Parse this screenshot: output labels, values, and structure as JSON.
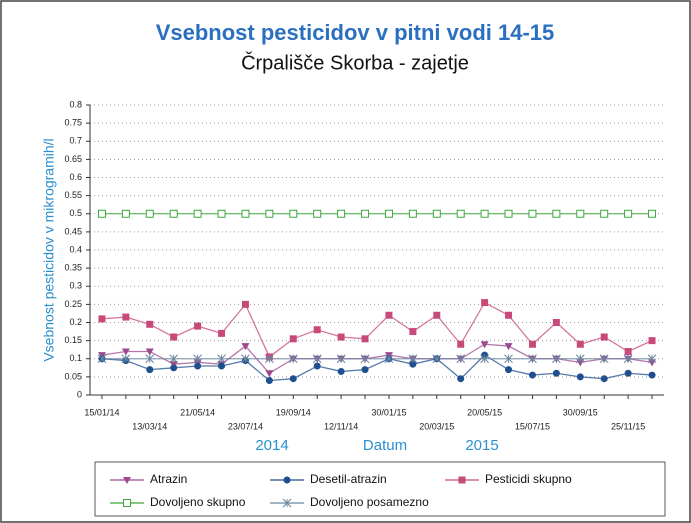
{
  "chart_data": {
    "type": "line",
    "title": "Vsebnost pesticidov v pitni vodi 14-15",
    "subtitle": "Črpališče Skorba - zajetje",
    "y_label": "Vsebnost pesticidov v mikrogramih/l",
    "x_label": "Datum",
    "annotations": [
      "2014",
      "2015"
    ],
    "categories": [
      "15/01/14",
      null,
      "13/03/14",
      null,
      "21/05/14",
      null,
      "23/07/14",
      null,
      "19/09/14",
      null,
      "12/11/14",
      null,
      "30/01/15",
      null,
      "20/03/15",
      null,
      "20/05/15",
      null,
      "15/07/15",
      null,
      "30/09/15",
      null,
      "25/11/15",
      null
    ],
    "series": [
      {
        "name": "Atrazin",
        "color": "#9b4a8e",
        "marker": "triangle",
        "values": [
          0.11,
          0.12,
          0.12,
          0.085,
          0.09,
          0.085,
          0.135,
          0.06,
          0.1,
          0.1,
          0.1,
          0.1,
          0.11,
          0.1,
          0.1,
          0.1,
          0.14,
          0.135,
          0.1,
          0.1,
          0.09,
          0.1,
          0.1,
          0.09
        ]
      },
      {
        "name": "Desetil-atrazin",
        "color": "#1f4f8f",
        "marker": "circle",
        "values": [
          0.1,
          0.095,
          0.07,
          0.075,
          0.08,
          0.08,
          0.095,
          0.04,
          0.045,
          0.08,
          0.065,
          0.07,
          0.1,
          0.085,
          0.1,
          0.045,
          0.11,
          0.07,
          0.055,
          0.06,
          0.05,
          0.045,
          0.06,
          0.055
        ]
      },
      {
        "name": "Pesticidi skupno",
        "color": "#c84a7a",
        "marker": "square",
        "values": [
          0.21,
          0.215,
          0.195,
          0.16,
          0.19,
          0.17,
          0.25,
          0.105,
          0.155,
          0.18,
          0.16,
          0.155,
          0.22,
          0.175,
          0.22,
          0.14,
          0.255,
          0.22,
          0.14,
          0.2,
          0.14,
          0.16,
          0.12,
          0.15
        ]
      },
      {
        "name": "Dovoljeno skupno",
        "color": "#3aa83a",
        "marker": "hollow",
        "values": [
          0.5,
          0.5,
          0.5,
          0.5,
          0.5,
          0.5,
          0.5,
          0.5,
          0.5,
          0.5,
          0.5,
          0.5,
          0.5,
          0.5,
          0.5,
          0.5,
          0.5,
          0.5,
          0.5,
          0.5,
          0.5,
          0.5,
          0.5,
          0.5
        ]
      },
      {
        "name": "Dovoljeno posamezno",
        "color": "#6a86a0",
        "marker": "star",
        "values": [
          0.1,
          0.1,
          0.1,
          0.1,
          0.1,
          0.1,
          0.1,
          0.1,
          0.1,
          0.1,
          0.1,
          0.1,
          0.1,
          0.1,
          0.1,
          0.1,
          0.1,
          0.1,
          0.1,
          0.1,
          0.1,
          0.1,
          0.1,
          0.1
        ]
      }
    ],
    "ylim": [
      0,
      0.8
    ],
    "yticks": [
      0,
      0.05,
      0.1,
      0.15,
      0.2,
      0.25,
      0.3,
      0.35,
      0.4,
      0.45,
      0.5,
      0.55,
      0.6,
      0.65,
      0.7,
      0.75,
      0.8
    ],
    "grid": true,
    "legend": "bottom"
  }
}
